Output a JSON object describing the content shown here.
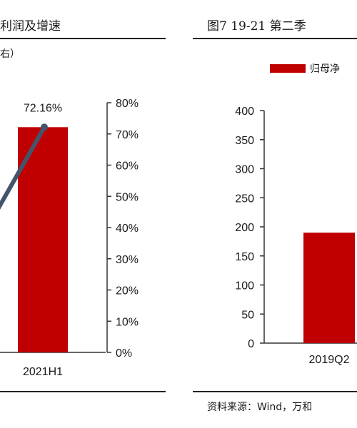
{
  "left_panel": {
    "title_fragment": "利润及增速",
    "unit_fragment": "右）"
  },
  "right_panel": {
    "title_fragment": "图7   19-21 第二季",
    "legend_fragment": "归母净",
    "source_fragment": "资料来源：Wind，万和"
  },
  "colors": {
    "bar": "#c00000",
    "line": "#44546a"
  },
  "chart_data": [
    {
      "type": "bar",
      "categories": [
        "2021H1"
      ],
      "series": [
        {
          "values": [
            72.16
          ],
          "axis": "right"
        },
        {
          "type": "line",
          "values": [
            72.16
          ],
          "axis": "right"
        }
      ],
      "data_labels": [
        "72.16%"
      ],
      "y2lim": [
        0,
        80
      ],
      "y2ticks": [
        "0%",
        "10%",
        "20%",
        "30%",
        "40%",
        "50%",
        "60%",
        "70%",
        "80%"
      ]
    },
    {
      "type": "bar",
      "categories": [
        "2019Q2"
      ],
      "series": [
        {
          "name": "归母净",
          "values": [
            190
          ]
        }
      ],
      "ylim": [
        0,
        400
      ],
      "yticks": [
        "0",
        "50",
        "100",
        "150",
        "200",
        "250",
        "300",
        "350",
        "400"
      ]
    }
  ]
}
